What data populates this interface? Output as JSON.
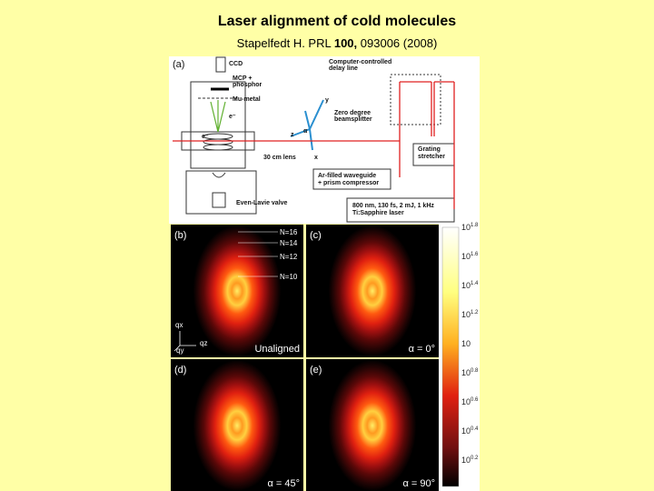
{
  "slide": {
    "title": "Laser alignment of cold molecules",
    "citation": {
      "author": "Stapelfedt H. PRL ",
      "volume": "100,",
      "rest": " 093006 (2008)"
    },
    "figure": {
      "diagram": {
        "panel": "(a)",
        "labels": [
          "CCD",
          "MCP +",
          "phosphor",
          "Mu-metal",
          "Computer-controlled",
          "delay line",
          "Zero degree",
          "beamsplitter",
          "Grating",
          "stretcher",
          "Ar-filled waveguide",
          "+ prism compressor",
          "800 nm, 130 fs, 2 mJ, 1 kHz",
          "Ti:Sapphire laser",
          "30 cm lens",
          "Even-Lavie valve"
        ],
        "axes": [
          "y",
          "z",
          "x",
          "α",
          "e⁻",
          "e⁻"
        ]
      },
      "images": [
        {
          "panel": "(b)",
          "caption": "Unaligned"
        },
        {
          "panel": "(c)",
          "caption": "α = 0°"
        },
        {
          "panel": "(d)",
          "caption": "α = 45°"
        },
        {
          "panel": "(e)",
          "caption": "α = 90°"
        }
      ],
      "ring_labels": [
        "N=16",
        "N=14",
        "N=12",
        "N=10"
      ],
      "q_axes": [
        "qx",
        "qz",
        "qy"
      ],
      "colorbar": [
        {
          "base": "10",
          "exp": "1.8"
        },
        {
          "base": "10",
          "exp": "1.6"
        },
        {
          "base": "10",
          "exp": "1.4"
        },
        {
          "base": "10",
          "exp": "1.2"
        },
        {
          "base": "10"
        },
        {
          "base": "10",
          "exp": "0.8"
        },
        {
          "base": "10",
          "exp": "0.6"
        },
        {
          "base": "10",
          "exp": "0.4"
        },
        {
          "base": "10",
          "exp": "0.2"
        }
      ]
    }
  }
}
